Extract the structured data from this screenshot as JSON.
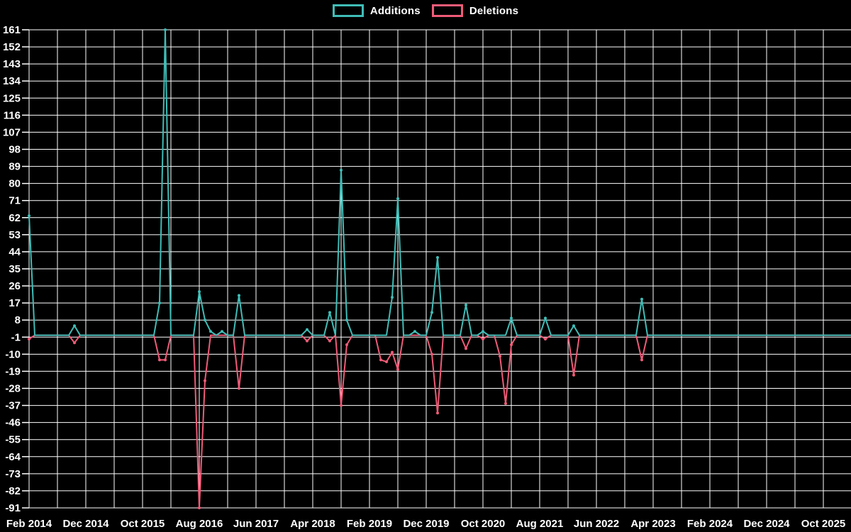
{
  "page": {
    "background": "#000000",
    "grid_color": "#ffffff",
    "text_color": "#ffffff"
  },
  "legend": {
    "items": [
      {
        "label": "Additions",
        "color": "#3fbdb7"
      },
      {
        "label": "Deletions",
        "color": "#ef5b78"
      }
    ]
  },
  "chart_data": {
    "type": "line",
    "title": "",
    "xlabel": "",
    "ylabel": "",
    "grid": true,
    "legend_position": "top-center",
    "ylim": [
      -91,
      161
    ],
    "y_ticks": [
      161,
      152,
      143,
      134,
      125,
      116,
      107,
      98,
      89,
      80,
      71,
      62,
      53,
      44,
      35,
      26,
      17,
      8,
      -1,
      -10,
      -19,
      -28,
      -37,
      -46,
      -55,
      -64,
      -73,
      -82,
      -91
    ],
    "x_tick_labels": [
      "Feb 2014",
      "Dec 2014",
      "Oct 2015",
      "Aug 2016",
      "Jun 2017",
      "Apr 2018",
      "Feb 2019",
      "Dec 2019",
      "Oct 2020",
      "Aug 2021",
      "Jun 2022",
      "Apr 2023",
      "Feb 2024",
      "Dec 2024",
      "Oct 2025"
    ],
    "months_per_x_tick": 10,
    "months_per_gridline": 5,
    "start_month_label": "Feb 2014",
    "end_month_label": "Oct 2025",
    "total_months": 141,
    "baseline_value": 0,
    "series": [
      {
        "name": "Additions",
        "color": "#3fbdb7",
        "default_value": 0,
        "points": [
          {
            "month_index": 0,
            "month": "Feb 2014",
            "value": 63
          },
          {
            "month_index": 8,
            "month": "Oct 2014",
            "value": 5
          },
          {
            "month_index": 23,
            "month": "Jan 2016",
            "value": 17
          },
          {
            "month_index": 24,
            "month": "Feb 2016",
            "value": 161
          },
          {
            "month_index": 30,
            "month": "Aug 2016",
            "value": 23
          },
          {
            "month_index": 31,
            "month": "Sep 2016",
            "value": 8
          },
          {
            "month_index": 32,
            "month": "Oct 2016",
            "value": 2
          },
          {
            "month_index": 34,
            "month": "Dec 2016",
            "value": 2
          },
          {
            "month_index": 37,
            "month": "Mar 2017",
            "value": 21
          },
          {
            "month_index": 49,
            "month": "Mar 2018",
            "value": 3
          },
          {
            "month_index": 53,
            "month": "Jul 2018",
            "value": 12
          },
          {
            "month_index": 55,
            "month": "Sep 2018",
            "value": 87
          },
          {
            "month_index": 56,
            "month": "Oct 2018",
            "value": 8
          },
          {
            "month_index": 64,
            "month": "Jun 2019",
            "value": 20
          },
          {
            "month_index": 65,
            "month": "Jul 2019",
            "value": 72
          },
          {
            "month_index": 68,
            "month": "Oct 2019",
            "value": 2
          },
          {
            "month_index": 71,
            "month": "Jan 2020",
            "value": 12
          },
          {
            "month_index": 72,
            "month": "Feb 2020",
            "value": 41
          },
          {
            "month_index": 77,
            "month": "Jul 2020",
            "value": 16
          },
          {
            "month_index": 80,
            "month": "Oct 2020",
            "value": 2
          },
          {
            "month_index": 85,
            "month": "Mar 2021",
            "value": 9
          },
          {
            "month_index": 91,
            "month": "Sep 2021",
            "value": 9
          },
          {
            "month_index": 96,
            "month": "Feb 2022",
            "value": 5
          },
          {
            "month_index": 108,
            "month": "Feb 2023",
            "value": 19
          }
        ]
      },
      {
        "name": "Deletions",
        "color": "#ef5b78",
        "default_value": 0,
        "points": [
          {
            "month_index": 0,
            "month": "Feb 2014",
            "value": -2
          },
          {
            "month_index": 8,
            "month": "Oct 2014",
            "value": -4
          },
          {
            "month_index": 23,
            "month": "Jan 2016",
            "value": -13
          },
          {
            "month_index": 24,
            "month": "Feb 2016",
            "value": -13
          },
          {
            "month_index": 30,
            "month": "Aug 2016",
            "value": -91
          },
          {
            "month_index": 31,
            "month": "Sep 2016",
            "value": -24
          },
          {
            "month_index": 37,
            "month": "Mar 2017",
            "value": -28
          },
          {
            "month_index": 49,
            "month": "Mar 2018",
            "value": -3
          },
          {
            "month_index": 53,
            "month": "Jul 2018",
            "value": -3
          },
          {
            "month_index": 55,
            "month": "Sep 2018",
            "value": -37
          },
          {
            "month_index": 56,
            "month": "Oct 2018",
            "value": -5
          },
          {
            "month_index": 62,
            "month": "Apr 2019",
            "value": -13
          },
          {
            "month_index": 63,
            "month": "May 2019",
            "value": -14
          },
          {
            "month_index": 64,
            "month": "Jun 2019",
            "value": -9
          },
          {
            "month_index": 65,
            "month": "Jul 2019",
            "value": -18
          },
          {
            "month_index": 71,
            "month": "Jan 2020",
            "value": -10
          },
          {
            "month_index": 72,
            "month": "Feb 2020",
            "value": -41
          },
          {
            "month_index": 77,
            "month": "Jul 2020",
            "value": -7
          },
          {
            "month_index": 80,
            "month": "Oct 2020",
            "value": -2
          },
          {
            "month_index": 83,
            "month": "Jan 2021",
            "value": -11
          },
          {
            "month_index": 84,
            "month": "Feb 2021",
            "value": -36
          },
          {
            "month_index": 85,
            "month": "Mar 2021",
            "value": -5
          },
          {
            "month_index": 91,
            "month": "Sep 2021",
            "value": -2
          },
          {
            "month_index": 96,
            "month": "Feb 2022",
            "value": -21
          },
          {
            "month_index": 108,
            "month": "Feb 2023",
            "value": -13
          }
        ]
      }
    ]
  }
}
